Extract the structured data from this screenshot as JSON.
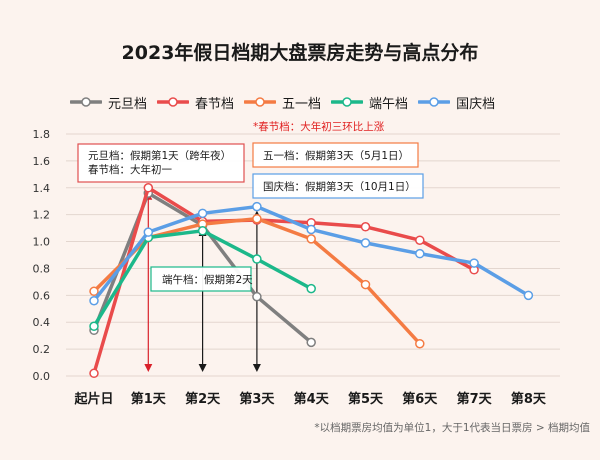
{
  "chart_data": {
    "type": "line",
    "title": "2023年假日档期大盘票房走势与高点分布",
    "categories": [
      "起片日",
      "第1天",
      "第2天",
      "第3天",
      "第4天",
      "第5天",
      "第6天",
      "第7天",
      "第8天"
    ],
    "ylim": [
      0,
      1.8
    ],
    "yticks": [
      "0.0",
      "0.2",
      "0.4",
      "0.6",
      "0.8",
      "1.0",
      "1.2",
      "1.4",
      "1.6",
      "1.8"
    ],
    "grid": true,
    "legend_position": "top",
    "series": [
      {
        "name": "元旦档",
        "color": "#7f7f7f",
        "values": [
          0.34,
          1.36,
          1.12,
          0.59,
          0.25,
          null,
          null,
          null,
          null
        ]
      },
      {
        "name": "春节档",
        "color": "#e94b4b",
        "values": [
          0.02,
          1.4,
          1.15,
          1.16,
          1.14,
          1.11,
          1.01,
          0.79,
          null
        ]
      },
      {
        "name": "五一档",
        "color": "#f47b43",
        "values": [
          0.63,
          1.03,
          1.13,
          1.17,
          1.02,
          0.68,
          0.24,
          null,
          null
        ]
      },
      {
        "name": "端午档",
        "color": "#1cb88a",
        "values": [
          0.37,
          1.03,
          1.08,
          0.87,
          0.65,
          null,
          null,
          null,
          null
        ]
      },
      {
        "name": "国庆档",
        "color": "#5b9ee6",
        "values": [
          0.56,
          1.07,
          1.21,
          1.26,
          1.09,
          0.99,
          0.91,
          0.84,
          0.6
        ]
      }
    ],
    "arrows": [
      {
        "series": "春节档",
        "category_index": 1,
        "color": "#d9202a"
      },
      {
        "series": "五一档",
        "category_index": 2,
        "color": "#1a1a1a"
      },
      {
        "series": "国庆档",
        "category_index": 3,
        "color": "#1a1a1a"
      }
    ],
    "annotations": {
      "red_note": "*春节档：大年初三环比上涨",
      "box1_line1": "元旦档：假期第1天（跨年夜）",
      "box1_line2": "春节档：大年初一",
      "box2": "五一档：假期第3天（5月1日）",
      "box3": "国庆档：假期第3天（10月1日）",
      "box4": "端午档：假期第2天"
    },
    "footnote": "*以档期票房均值为单位1，大于1代表当日票房 > 档期均值"
  }
}
